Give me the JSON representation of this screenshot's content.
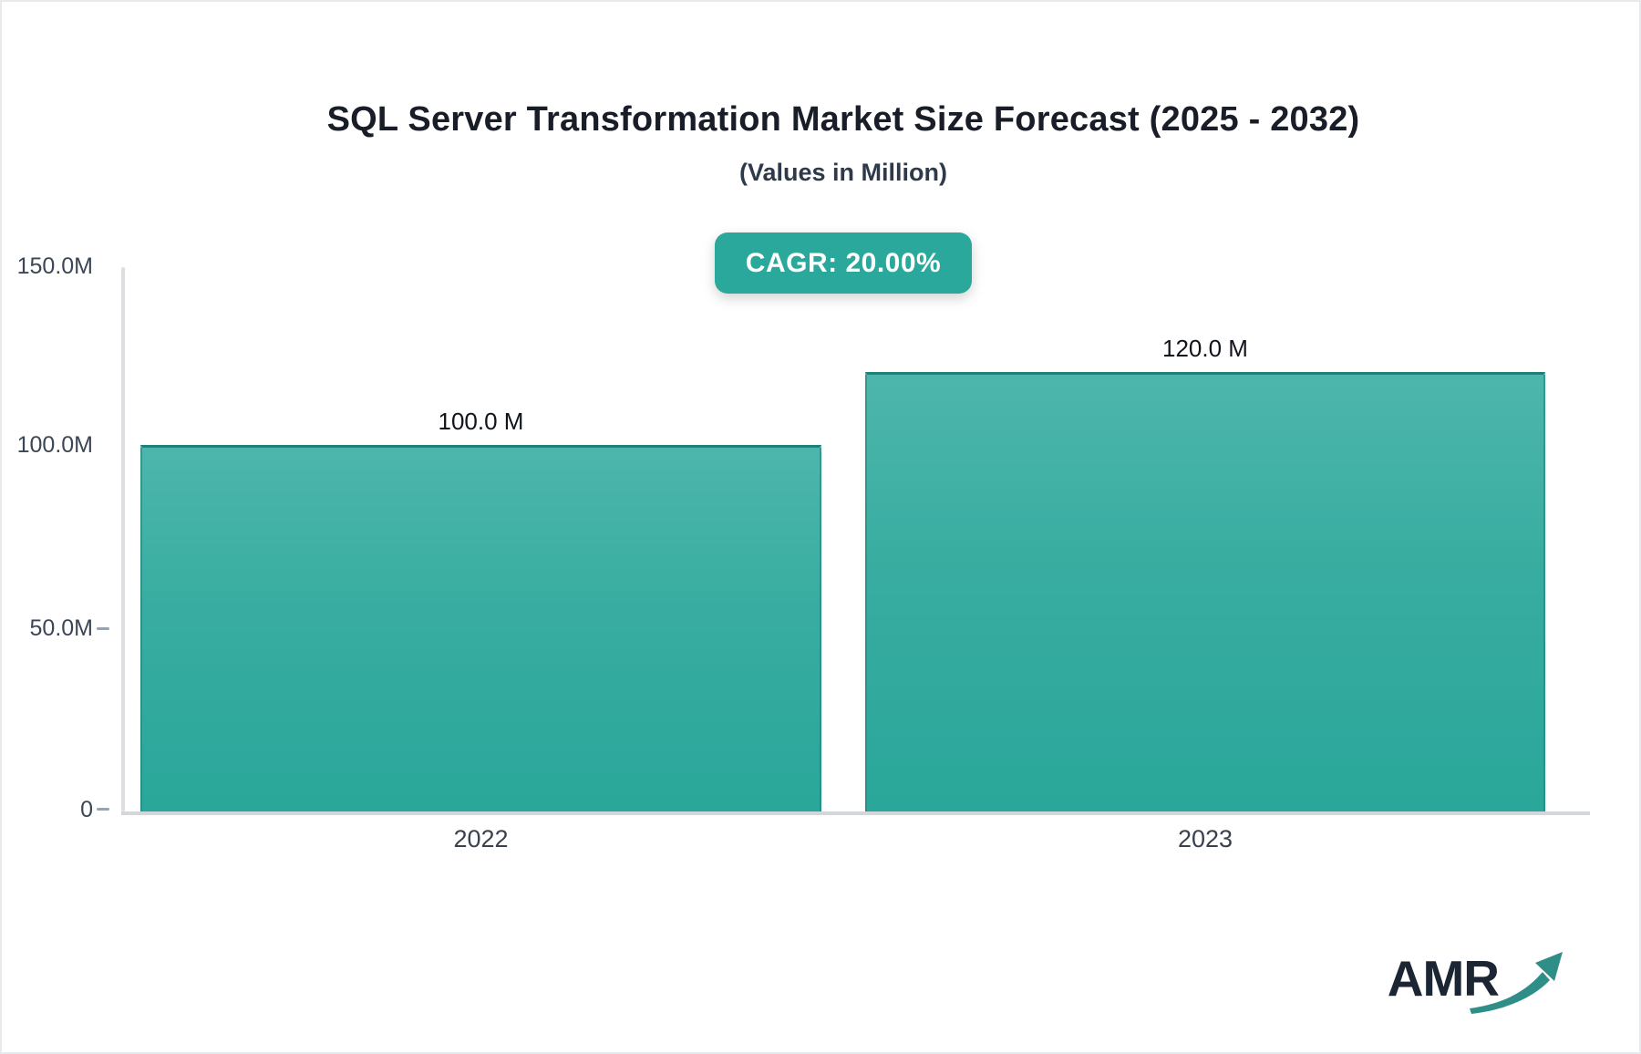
{
  "header": {
    "title": "SQL Server Transformation Market Size Forecast (2025 - 2032)",
    "subtitle": "(Values in Million)",
    "cagr_badge": "CAGR: 20.00%"
  },
  "chart_data": {
    "type": "bar",
    "title": "SQL Server Transformation Market Size Forecast (2025 - 2032)",
    "subtitle": "(Values in Million)",
    "unit": "Million",
    "cagr": "20.00%",
    "categories": [
      "2022",
      "2023"
    ],
    "values": [
      100.0,
      120.0
    ],
    "bar_value_labels": [
      "100.0 M",
      "120.0 M"
    ],
    "y_axis": {
      "ticks": [
        "150.0M",
        "100.0M",
        "50.0M",
        "0"
      ],
      "tick_values": [
        150,
        100,
        50,
        0
      ],
      "min": 0,
      "max": 150
    },
    "grid": false,
    "legend": "none",
    "bar_color_top": "#4db6ac",
    "bar_color_bottom": "#2aa79a"
  },
  "branding": {
    "logo_text": "AMR",
    "logo_arrow_icon": "trend-up-arrow"
  },
  "colors": {
    "badge_bg": "#2aa89c",
    "badge_text": "#ffffff",
    "bar_border": "#1e8076",
    "axis_line": "#d9dce0",
    "tick_mark": "#9aa2ab",
    "title_text": "#181d27",
    "axis_text": "#3b4656",
    "logo_navy": "#1b2533",
    "logo_teal": "#2f8f88"
  }
}
